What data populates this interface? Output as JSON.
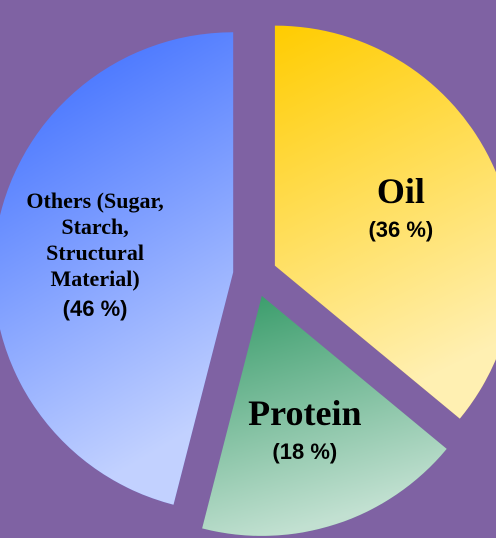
{
  "chart_data": {
    "type": "pie",
    "categories": [
      "Oil",
      "Protein",
      "Others (Sugar, Starch, Structural Material)"
    ],
    "values": [
      36,
      18,
      46
    ],
    "value_labels": [
      "(36 %)",
      "(18 %)",
      "(46 %)"
    ],
    "colors": [
      "#ffcc00",
      "#339966",
      "#3366ff"
    ]
  }
}
